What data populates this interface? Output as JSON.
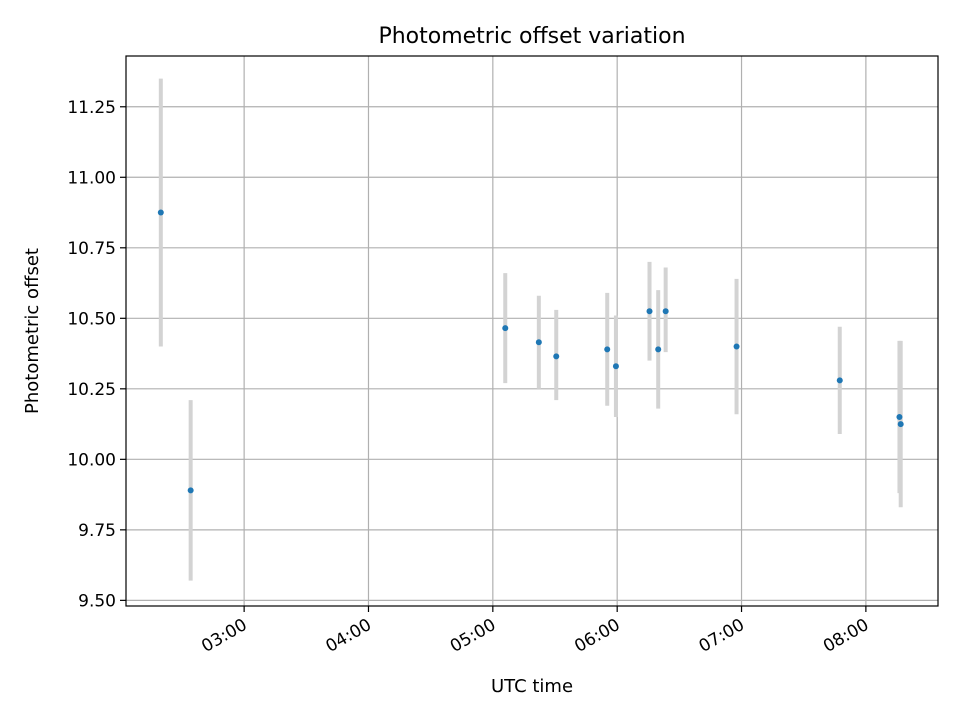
{
  "chart_data": {
    "type": "scatter",
    "title": "Photometric offset variation",
    "xlabel": "UTC time",
    "ylabel": "Photometric offset",
    "x_axis": "time",
    "xlim": [
      2.05,
      8.58
    ],
    "ylim": [
      9.48,
      11.43
    ],
    "xticks": [
      {
        "value": 3.0,
        "label": "03:00"
      },
      {
        "value": 4.0,
        "label": "04:00"
      },
      {
        "value": 5.0,
        "label": "05:00"
      },
      {
        "value": 6.0,
        "label": "06:00"
      },
      {
        "value": 7.0,
        "label": "07:00"
      },
      {
        "value": 8.0,
        "label": "08:00"
      }
    ],
    "yticks": [
      {
        "value": 9.5,
        "label": "9.50"
      },
      {
        "value": 9.75,
        "label": "9.75"
      },
      {
        "value": 10.0,
        "label": "10.00"
      },
      {
        "value": 10.25,
        "label": "10.25"
      },
      {
        "value": 10.5,
        "label": "10.50"
      },
      {
        "value": 10.75,
        "label": "10.75"
      },
      {
        "value": 11.0,
        "label": "11.00"
      },
      {
        "value": 11.25,
        "label": "11.25"
      }
    ],
    "grid": true,
    "point_color": "#1f77b4",
    "errorbar_color": "#d3d3d3",
    "points": [
      {
        "x": 2.33,
        "y": 10.875,
        "ylow": 10.4,
        "yhigh": 11.35
      },
      {
        "x": 2.57,
        "y": 9.89,
        "ylow": 9.57,
        "yhigh": 10.21
      },
      {
        "x": 5.1,
        "y": 10.465,
        "ylow": 10.27,
        "yhigh": 10.66
      },
      {
        "x": 5.37,
        "y": 10.415,
        "ylow": 10.25,
        "yhigh": 10.58
      },
      {
        "x": 5.51,
        "y": 10.365,
        "ylow": 10.21,
        "yhigh": 10.53
      },
      {
        "x": 5.92,
        "y": 10.39,
        "ylow": 10.19,
        "yhigh": 10.59
      },
      {
        "x": 5.99,
        "y": 10.33,
        "ylow": 10.15,
        "yhigh": 10.51
      },
      {
        "x": 6.26,
        "y": 10.525,
        "ylow": 10.35,
        "yhigh": 10.7
      },
      {
        "x": 6.33,
        "y": 10.39,
        "ylow": 10.18,
        "yhigh": 10.6
      },
      {
        "x": 6.39,
        "y": 10.525,
        "ylow": 10.38,
        "yhigh": 10.68
      },
      {
        "x": 6.96,
        "y": 10.4,
        "ylow": 10.16,
        "yhigh": 10.64
      },
      {
        "x": 7.79,
        "y": 10.28,
        "ylow": 10.09,
        "yhigh": 10.47
      },
      {
        "x": 8.27,
        "y": 10.15,
        "ylow": 9.88,
        "yhigh": 10.42
      },
      {
        "x": 8.28,
        "y": 10.125,
        "ylow": 9.83,
        "yhigh": 10.42
      }
    ]
  }
}
